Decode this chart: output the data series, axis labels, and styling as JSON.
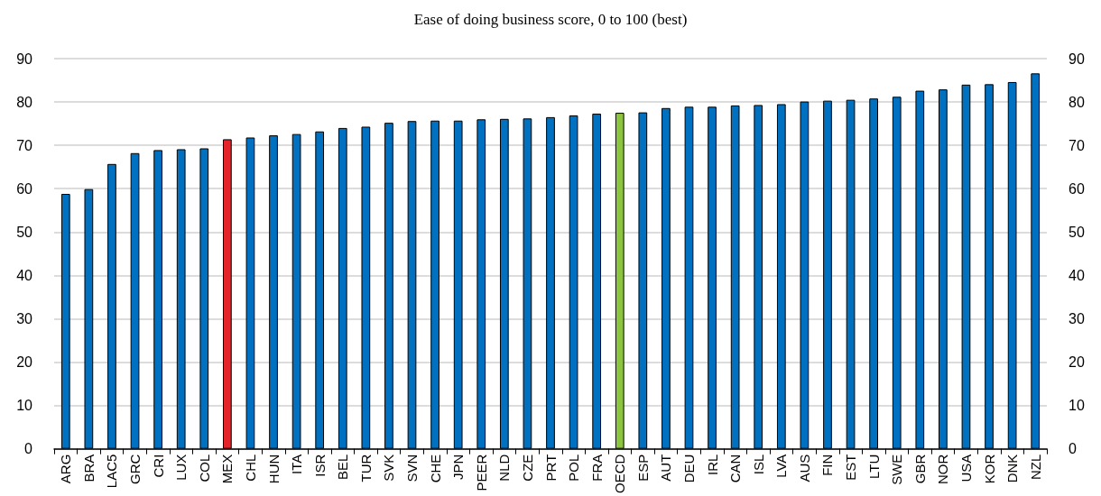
{
  "chart_data": {
    "type": "bar",
    "title": "Ease of doing business score, 0 to 100 (best)",
    "categories": [
      "ARG",
      "BRA",
      "LAC5",
      "GRC",
      "CRI",
      "LUX",
      "COL",
      "MEX",
      "CHL",
      "HUN",
      "ITA",
      "ISR",
      "BEL",
      "TUR",
      "SVK",
      "SVN",
      "CHE",
      "JPN",
      "PEER",
      "NLD",
      "CZE",
      "PRT",
      "POL",
      "FRA",
      "OECD",
      "ESP",
      "AUT",
      "DEU",
      "IRL",
      "CAN",
      "ISL",
      "LVA",
      "AUS",
      "FIN",
      "EST",
      "LTU",
      "SWE",
      "GBR",
      "NOR",
      "USA",
      "KOR",
      "DNK",
      "NZL"
    ],
    "values": [
      58.8,
      59.9,
      65.7,
      68.2,
      68.9,
      69.1,
      69.3,
      71.4,
      71.8,
      72.3,
      72.6,
      73.2,
      74.0,
      74.3,
      75.2,
      75.6,
      75.7,
      75.7,
      76.0,
      76.1,
      76.2,
      76.5,
      76.9,
      77.3,
      77.5,
      77.6,
      78.6,
      78.9,
      78.9,
      79.2,
      79.3,
      79.5,
      80.1,
      80.3,
      80.5,
      80.8,
      81.2,
      82.6,
      82.9,
      84.0,
      84.1,
      84.6,
      86.6
    ],
    "colors": [
      "#0070c0",
      "#0070c0",
      "#0070c0",
      "#0070c0",
      "#0070c0",
      "#0070c0",
      "#0070c0",
      "#e3242b",
      "#0070c0",
      "#0070c0",
      "#0070c0",
      "#0070c0",
      "#0070c0",
      "#0070c0",
      "#0070c0",
      "#0070c0",
      "#0070c0",
      "#0070c0",
      "#0070c0",
      "#0070c0",
      "#0070c0",
      "#0070c0",
      "#0070c0",
      "#0070c0",
      "#8cc63f",
      "#0070c0",
      "#0070c0",
      "#0070c0",
      "#0070c0",
      "#0070c0",
      "#0070c0",
      "#0070c0",
      "#0070c0",
      "#0070c0",
      "#0070c0",
      "#0070c0",
      "#0070c0",
      "#0070c0",
      "#0070c0",
      "#0070c0",
      "#0070c0",
      "#0070c0",
      "#0070c0"
    ],
    "ylim": [
      0,
      90
    ],
    "yticks": [
      0,
      10,
      20,
      30,
      40,
      50,
      60,
      70,
      80,
      90
    ],
    "y2lim": [
      0,
      90
    ],
    "y2ticks": [
      0,
      10,
      20,
      30,
      40,
      50,
      60,
      70,
      80,
      90
    ],
    "grid": "y"
  }
}
